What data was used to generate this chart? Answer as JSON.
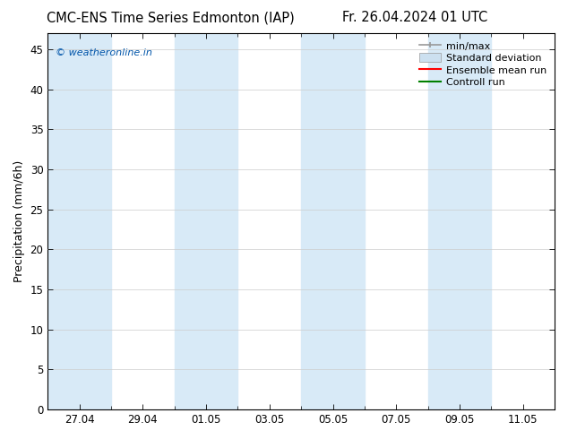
{
  "title": "CMC-ENS Time Series Edmonton (IAP)",
  "title_right": "Fr. 26.04.2024 01 UTC",
  "ylabel": "Precipitation (mm/6h)",
  "watermark": "© weatheronline.in",
  "watermark_color": "#0055aa",
  "bg_color": "#ffffff",
  "plot_bg_color": "#ffffff",
  "shade_color": "#d8eaf7",
  "yticks": [
    0,
    5,
    10,
    15,
    20,
    25,
    30,
    35,
    40,
    45
  ],
  "ylim": [
    0,
    47
  ],
  "xlim": [
    0,
    16
  ],
  "xtick_positions": [
    1,
    3,
    5,
    7,
    9,
    11,
    13,
    15
  ],
  "xtick_labels": [
    "27.04",
    "29.04",
    "01.05",
    "03.05",
    "05.05",
    "07.05",
    "09.05",
    "11.05"
  ],
  "shade_bands": [
    [
      0.0,
      2.0
    ],
    [
      4.0,
      6.0
    ],
    [
      8.0,
      10.0
    ],
    [
      12.0,
      14.0
    ]
  ],
  "legend_items": [
    {
      "label": "min/max",
      "color": "#999999",
      "type": "errorbar"
    },
    {
      "label": "Standard deviation",
      "color": "#cce0f0",
      "type": "patch"
    },
    {
      "label": "Ensemble mean run",
      "color": "#ff0000",
      "type": "line"
    },
    {
      "label": "Controll run",
      "color": "#008000",
      "type": "line"
    }
  ],
  "font_size": 8.5,
  "title_font_size": 10.5,
  "ylabel_font_size": 9
}
